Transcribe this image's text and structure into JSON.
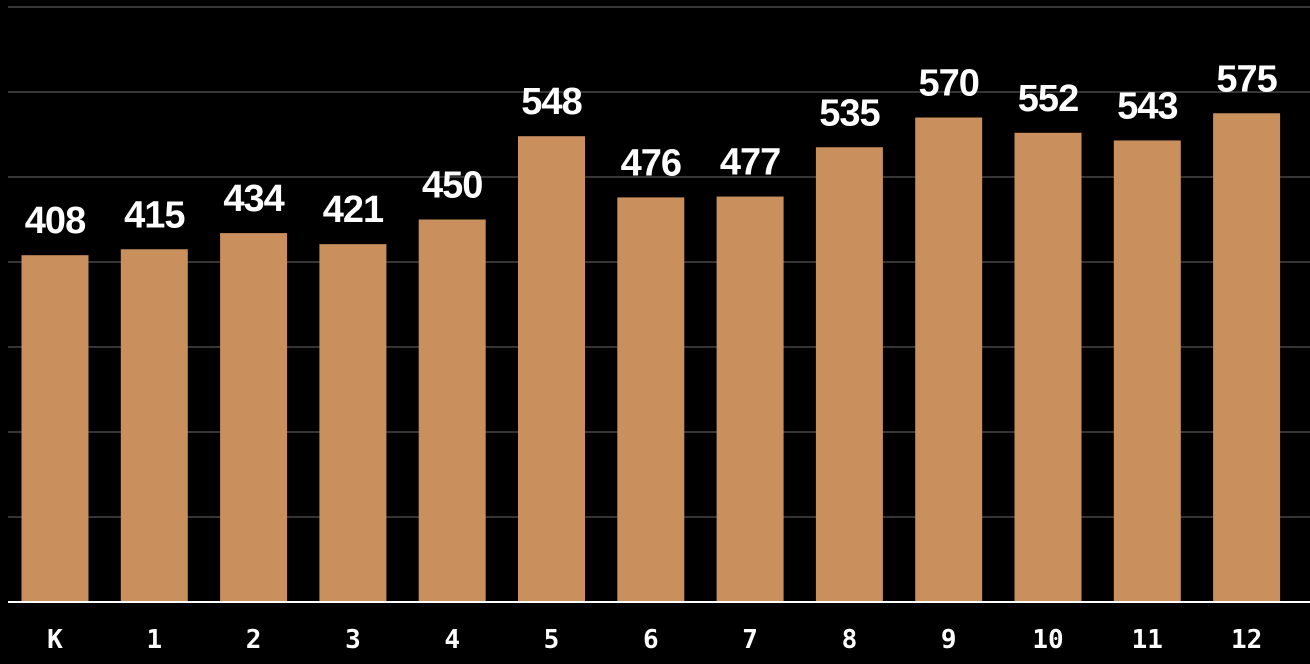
{
  "chart_data": {
    "type": "bar",
    "categories": [
      "K",
      "1",
      "2",
      "3",
      "4",
      "5",
      "6",
      "7",
      "8",
      "9",
      "10",
      "11",
      "12"
    ],
    "values": [
      408,
      415,
      434,
      421,
      450,
      548,
      476,
      477,
      535,
      570,
      552,
      543,
      575
    ],
    "title": "",
    "xlabel": "",
    "ylabel": "",
    "ylim": [
      0,
      700
    ],
    "grid": true,
    "legend": "none",
    "bar_color": "#c98f5c",
    "grid_color": "#555555",
    "axis_color": "#ffffff",
    "text_color": "#ffffff",
    "background": "#000000"
  }
}
